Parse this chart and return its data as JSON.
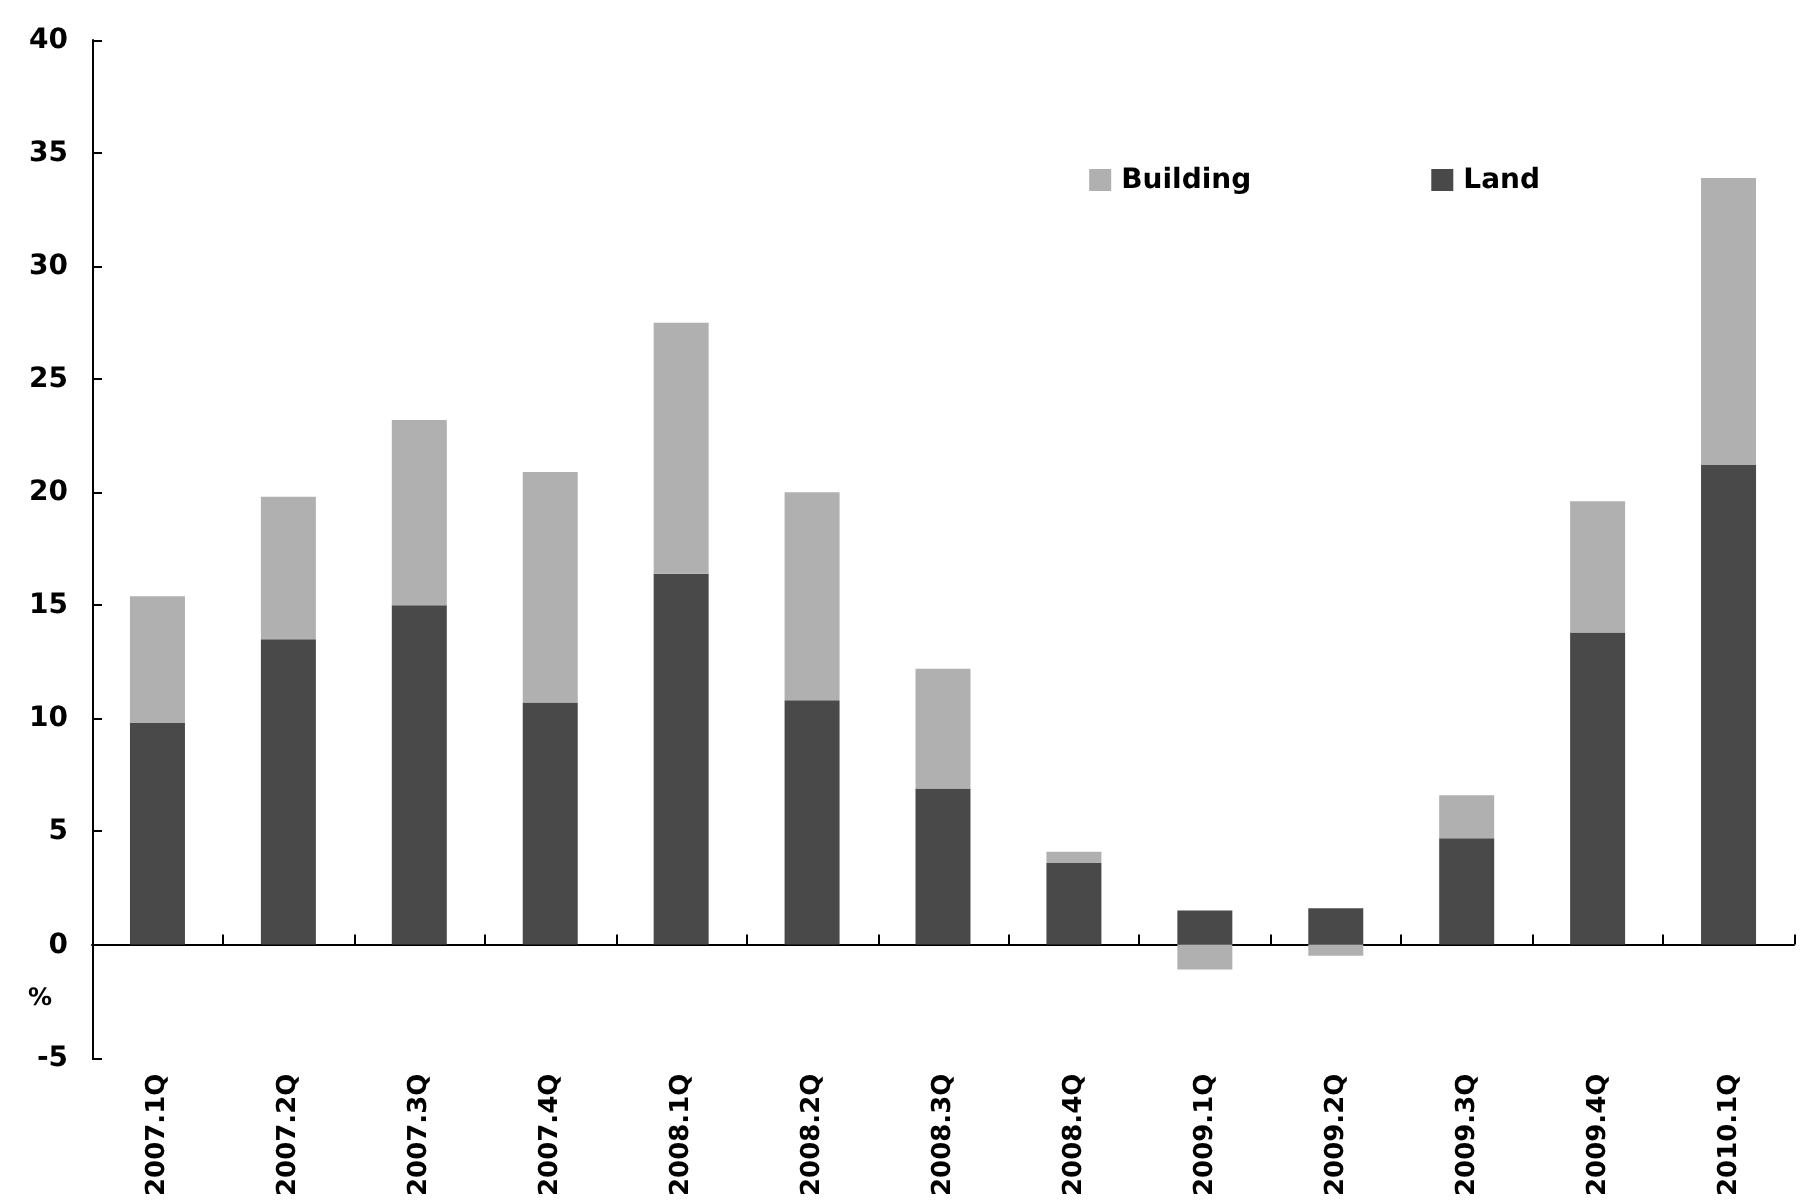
{
  "chart_data": {
    "type": "bar",
    "stacked": true,
    "ylabel": "%",
    "categories": [
      "2007.1Q",
      "2007.2Q",
      "2007.3Q",
      "2007.4Q",
      "2008.1Q",
      "2008.2Q",
      "2008.3Q",
      "2008.4Q",
      "2009.1Q",
      "2009.2Q",
      "2009.3Q",
      "2009.4Q",
      "2010.1Q"
    ],
    "series": [
      {
        "name": "Land",
        "color": "#494949",
        "values": [
          9.8,
          13.5,
          15.0,
          10.7,
          16.4,
          10.8,
          6.9,
          3.6,
          1.5,
          1.6,
          4.7,
          13.8,
          21.2
        ]
      },
      {
        "name": "Building",
        "color": "#b0b0b0",
        "values": [
          5.6,
          6.3,
          8.2,
          10.2,
          11.1,
          9.2,
          5.3,
          0.5,
          -1.1,
          -0.5,
          1.9,
          5.8,
          12.7
        ]
      }
    ],
    "ylim": [
      -5,
      40
    ],
    "yticks": [
      -5,
      0,
      5,
      10,
      15,
      20,
      25,
      30,
      35,
      40
    ],
    "legend": "top right"
  }
}
